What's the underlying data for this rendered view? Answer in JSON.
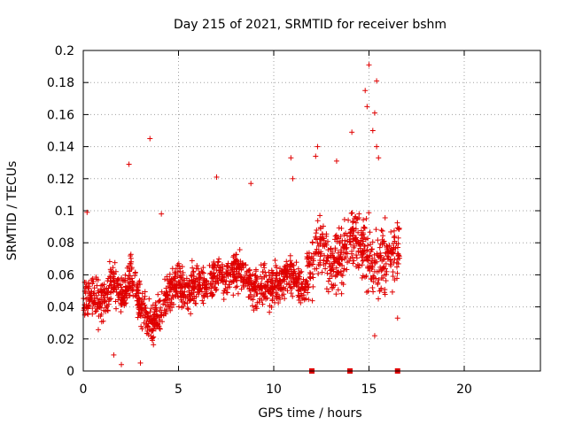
{
  "chart_data": {
    "type": "scatter",
    "title": "Day 215 of 2021, SRMTID for receiver bshm",
    "xlabel": "GPS time / hours",
    "ylabel": "SRMTID / TECUs",
    "xlim": [
      0,
      24
    ],
    "ylim": [
      0,
      0.2
    ],
    "xticks": [
      "0",
      "5",
      "10",
      "15",
      "20"
    ],
    "yticks": [
      "0",
      "0.02",
      "0.04",
      "0.06",
      "0.08",
      "0.1",
      "0.12",
      "0.14",
      "0.16",
      "0.18",
      "0.2"
    ],
    "grid": true,
    "series_color": "#e00000",
    "trend": [
      [
        0.0,
        0.038
      ],
      [
        0.3,
        0.05
      ],
      [
        0.6,
        0.045
      ],
      [
        1.0,
        0.042
      ],
      [
        1.5,
        0.055
      ],
      [
        2.0,
        0.048
      ],
      [
        2.5,
        0.06
      ],
      [
        3.0,
        0.04
      ],
      [
        3.5,
        0.028
      ],
      [
        4.0,
        0.035
      ],
      [
        4.5,
        0.05
      ],
      [
        5.0,
        0.055
      ],
      [
        5.5,
        0.05
      ],
      [
        6.0,
        0.055
      ],
      [
        6.5,
        0.052
      ],
      [
        7.0,
        0.06
      ],
      [
        7.5,
        0.058
      ],
      [
        8.0,
        0.062
      ],
      [
        8.5,
        0.058
      ],
      [
        9.0,
        0.05
      ],
      [
        9.5,
        0.055
      ],
      [
        10.0,
        0.052
      ],
      [
        10.5,
        0.058
      ],
      [
        11.0,
        0.06
      ],
      [
        11.5,
        0.05
      ],
      [
        12.0,
        0.065
      ],
      [
        12.5,
        0.082
      ],
      [
        13.0,
        0.065
      ],
      [
        13.5,
        0.07
      ],
      [
        14.0,
        0.085
      ],
      [
        14.5,
        0.075
      ],
      [
        15.0,
        0.07
      ],
      [
        15.5,
        0.065
      ],
      [
        16.0,
        0.07
      ],
      [
        16.4,
        0.075
      ]
    ],
    "data_end_hour": 16.6,
    "outliers": [
      {
        "x": 2.4,
        "y": 0.129
      },
      {
        "x": 3.5,
        "y": 0.145
      },
      {
        "x": 7.0,
        "y": 0.121
      },
      {
        "x": 8.8,
        "y": 0.117
      },
      {
        "x": 11.0,
        "y": 0.12
      },
      {
        "x": 12.3,
        "y": 0.14
      },
      {
        "x": 14.1,
        "y": 0.149
      },
      {
        "x": 15.0,
        "y": 0.191
      },
      {
        "x": 14.8,
        "y": 0.175
      },
      {
        "x": 14.9,
        "y": 0.165
      },
      {
        "x": 15.4,
        "y": 0.181
      },
      {
        "x": 15.3,
        "y": 0.161
      },
      {
        "x": 15.2,
        "y": 0.15
      },
      {
        "x": 15.4,
        "y": 0.14
      },
      {
        "x": 15.5,
        "y": 0.133
      },
      {
        "x": 16.5,
        "y": 0.033
      },
      {
        "x": 13.3,
        "y": 0.131
      },
      {
        "x": 12.2,
        "y": 0.134
      },
      {
        "x": 10.9,
        "y": 0.133
      },
      {
        "x": 3.0,
        "y": 0.005
      },
      {
        "x": 2.0,
        "y": 0.004
      },
      {
        "x": 1.6,
        "y": 0.01
      },
      {
        "x": 15.3,
        "y": 0.022
      },
      {
        "x": 4.1,
        "y": 0.098
      },
      {
        "x": 0.2,
        "y": 0.099
      }
    ],
    "gap_markers": [
      12.0,
      14.0,
      16.5
    ]
  }
}
